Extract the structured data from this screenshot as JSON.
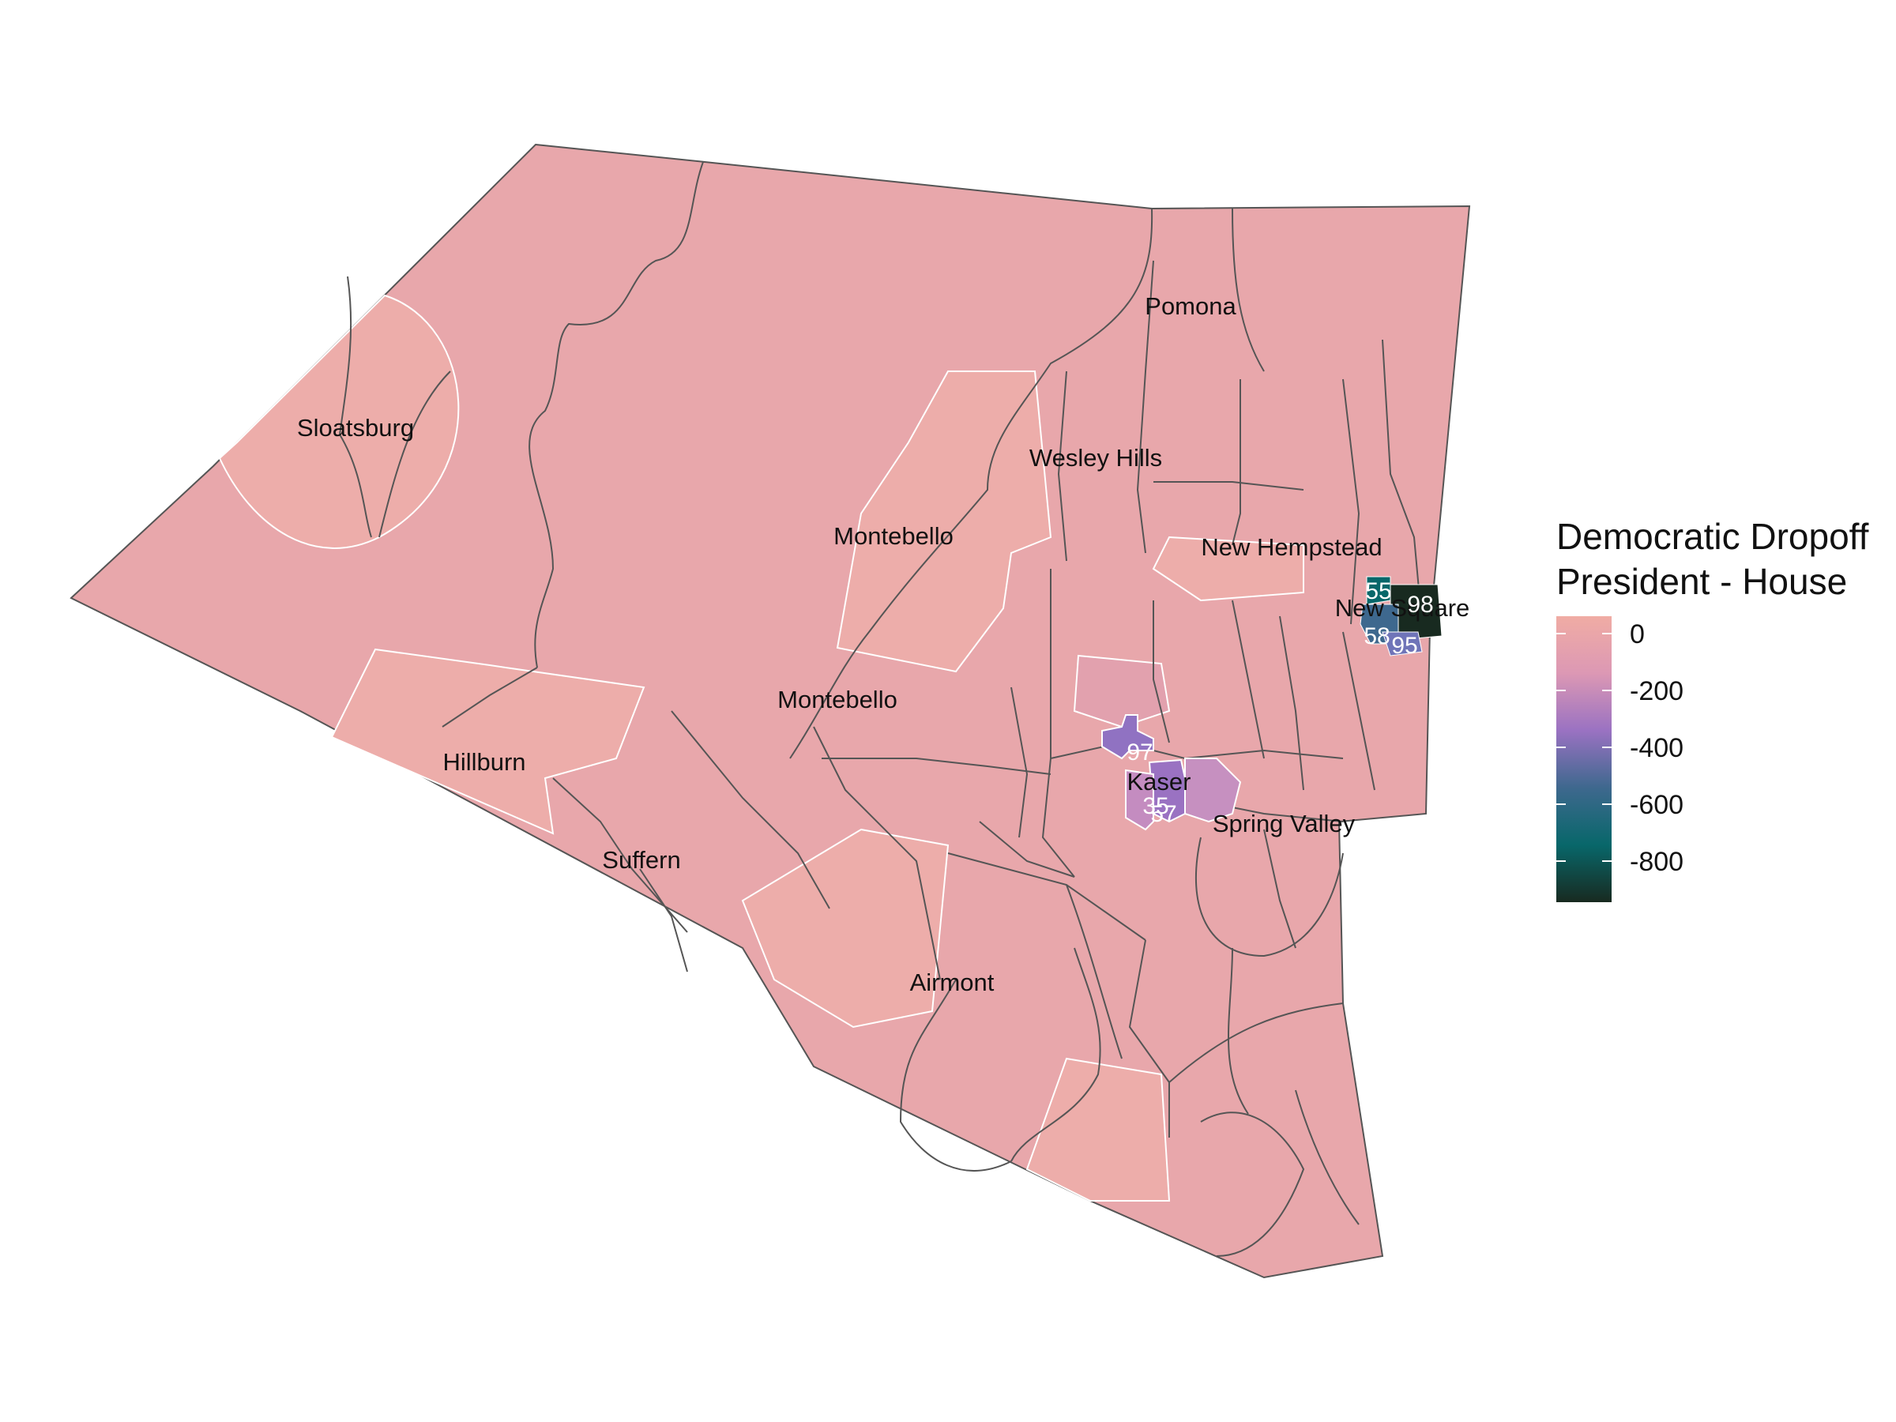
{
  "legend": {
    "title_line1": "Democratic Dropoff",
    "title_line2": "President - House",
    "ticks": [
      "0",
      "-200",
      "-400",
      "-600",
      "-800"
    ],
    "color_stops": [
      "#f0aca4",
      "#dc98b4",
      "#9a72c2",
      "#3e688e",
      "#08676a",
      "#182a20"
    ]
  },
  "places": [
    "Pomona",
    "Sloatsburg",
    "Wesley Hills",
    "Montebello",
    "New Hempstead",
    "New Square",
    "Montebello",
    "Hillburn",
    "Kaser",
    "Spring Valley",
    "Suffern",
    "Airmont"
  ],
  "precinct_labels": [
    "55",
    "98",
    "58",
    "95",
    "97",
    "35",
    "57"
  ],
  "colors": {
    "base_fill": "#e8a7ab",
    "light_fill": "#edadaa",
    "mid_fill": "#e2a1ae",
    "outline": "#555555",
    "boundary": "#ffffff"
  }
}
